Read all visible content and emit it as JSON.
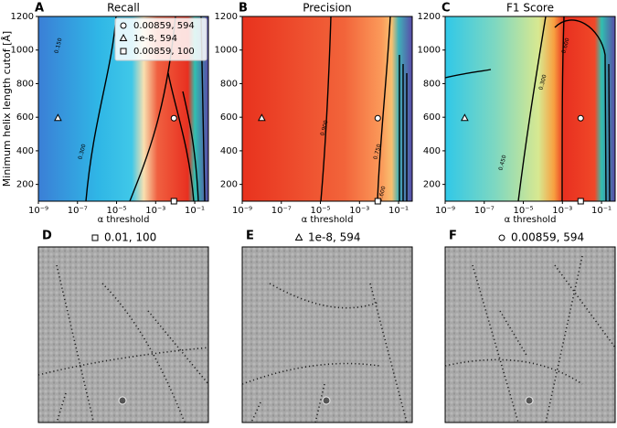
{
  "chart_data": [
    {
      "type": "heatmap",
      "panel": "A",
      "title": "Recall",
      "xlabel": "α threshold",
      "ylabel": "Minimum helix length cutof [Å]",
      "log_x": true,
      "xlim": [
        1e-09,
        0.5
      ],
      "xticks": [
        {
          "value": 1e-09,
          "label": "10⁻⁹"
        },
        {
          "value": 1e-07,
          "label": "10⁻⁷"
        },
        {
          "value": 1e-05,
          "label": "10⁻⁵"
        },
        {
          "value": 0.001,
          "label": "10⁻³"
        },
        {
          "value": 0.1,
          "label": "10⁻¹"
        }
      ],
      "ylim": [
        100,
        1200
      ],
      "yticks": [
        200,
        400,
        600,
        800,
        1000,
        1200
      ],
      "contour_labels": [
        "0.150",
        "0.300"
      ],
      "points": [
        {
          "name": "0.00859, 594",
          "marker": "circle",
          "x": 0.00859,
          "y": 594
        },
        {
          "name": "1e-8, 594",
          "marker": "triangle",
          "x": 1e-08,
          "y": 594
        },
        {
          "name": "0.00859, 100",
          "marker": "square",
          "x": 0.00859,
          "y": 100
        }
      ],
      "legend": "upper right"
    },
    {
      "type": "heatmap",
      "panel": "B",
      "title": "Precision",
      "xlabel": "α threshold",
      "log_x": true,
      "xlim": [
        1e-09,
        0.5
      ],
      "xticks": [
        {
          "value": 1e-09,
          "label": "10⁻⁹"
        },
        {
          "value": 1e-07,
          "label": "10⁻⁷"
        },
        {
          "value": 1e-05,
          "label": "10⁻⁵"
        },
        {
          "value": 0.001,
          "label": "10⁻³"
        },
        {
          "value": 0.1,
          "label": "10⁻¹"
        }
      ],
      "ylim": [
        100,
        1200
      ],
      "yticks": [
        200,
        400,
        600,
        800,
        1000,
        1200
      ],
      "contour_labels": [
        "0.900",
        "0.750",
        "0.600"
      ],
      "points": [
        {
          "marker": "circle",
          "x": 0.00859,
          "y": 594
        },
        {
          "marker": "triangle",
          "x": 1e-08,
          "y": 594
        },
        {
          "marker": "square",
          "x": 0.00859,
          "y": 100
        }
      ]
    },
    {
      "type": "heatmap",
      "panel": "C",
      "title": "F1 Score",
      "xlabel": "α threshold",
      "log_x": true,
      "xlim": [
        1e-09,
        0.5
      ],
      "xticks": [
        {
          "value": 1e-09,
          "label": "10⁻⁹"
        },
        {
          "value": 1e-07,
          "label": "10⁻⁷"
        },
        {
          "value": 1e-05,
          "label": "10⁻⁵"
        },
        {
          "value": 0.001,
          "label": "10⁻³"
        },
        {
          "value": 0.1,
          "label": "10⁻¹"
        }
      ],
      "ylim": [
        100,
        1200
      ],
      "yticks": [
        200,
        400,
        600,
        800,
        1000,
        1200
      ],
      "contour_labels": [
        "0.300",
        "0.450",
        "0.600"
      ],
      "points": [
        {
          "marker": "circle",
          "x": 0.00859,
          "y": 594
        },
        {
          "marker": "triangle",
          "x": 1e-08,
          "y": 594
        },
        {
          "marker": "square",
          "x": 0.00859,
          "y": 100
        }
      ]
    }
  ],
  "micrographs": [
    {
      "panel": "D",
      "marker": "square",
      "title": "0.01, 100"
    },
    {
      "panel": "E",
      "marker": "triangle",
      "title": "1e-8, 594"
    },
    {
      "panel": "F",
      "marker": "circle",
      "title": "0.00859, 594"
    }
  ]
}
